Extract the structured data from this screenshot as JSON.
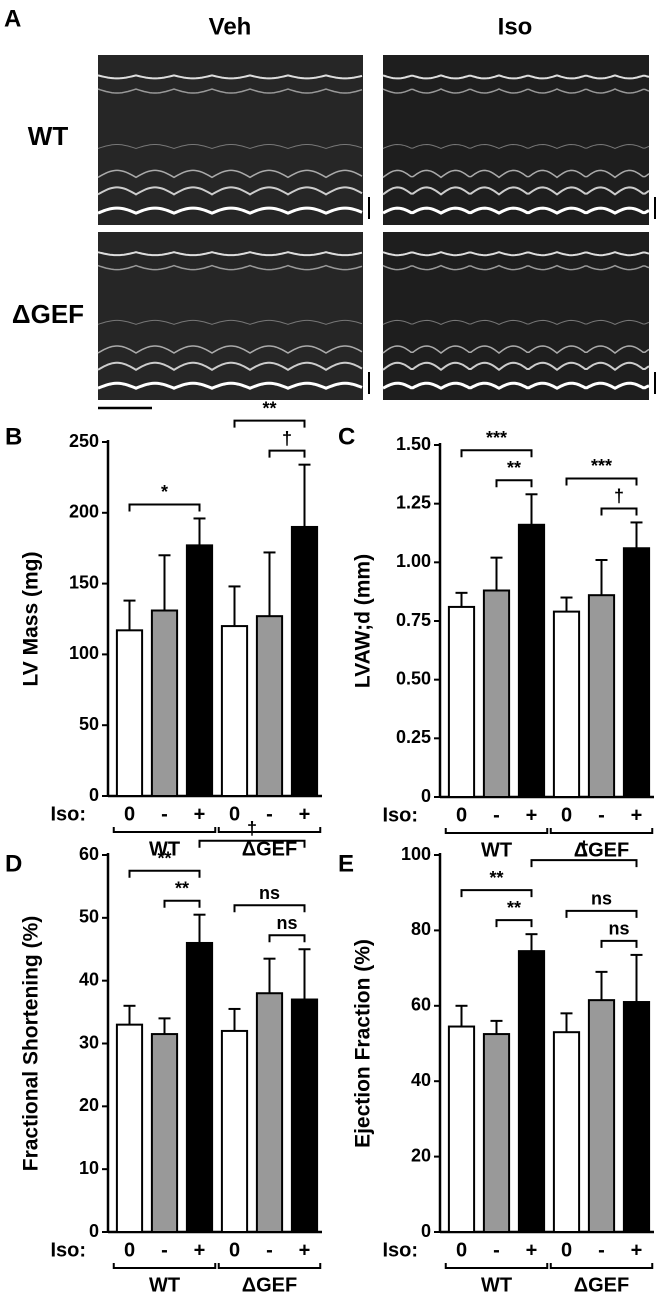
{
  "panel_a": {
    "label": "A",
    "columns": [
      "Veh",
      "Iso"
    ],
    "rows": [
      "WT",
      "ΔGEF"
    ]
  },
  "chart_data": [
    {
      "type": "bar",
      "panel": "B",
      "ylabel": "LV Mass (mg)",
      "categories": [
        "0",
        "-",
        "+",
        "0",
        "-",
        "+"
      ],
      "values": [
        117,
        131,
        177,
        120,
        127,
        190
      ],
      "errors": [
        21,
        39,
        19,
        28,
        45,
        44
      ],
      "colors": [
        "#ffffff",
        "#999999",
        "#000000",
        "#ffffff",
        "#999999",
        "#000000"
      ],
      "x_row_label": "Iso:",
      "groups": [
        "WT",
        "ΔGEF"
      ],
      "ylim": [
        0,
        250
      ],
      "yticks": [
        0,
        50,
        100,
        150,
        200,
        250
      ],
      "annotations": [
        {
          "text": "*",
          "between": [
            0,
            2
          ]
        },
        {
          "text": "†",
          "between": [
            4,
            5
          ]
        },
        {
          "text": "**",
          "between": [
            3,
            5
          ]
        }
      ]
    },
    {
      "type": "bar",
      "panel": "C",
      "ylabel": "LVAW;d (mm)",
      "categories": [
        "0",
        "-",
        "+",
        "0",
        "-",
        "+"
      ],
      "values": [
        0.81,
        0.88,
        1.16,
        0.79,
        0.86,
        1.06
      ],
      "errors": [
        0.06,
        0.14,
        0.13,
        0.06,
        0.15,
        0.11
      ],
      "colors": [
        "#ffffff",
        "#999999",
        "#000000",
        "#ffffff",
        "#999999",
        "#000000"
      ],
      "x_row_label": "Iso:",
      "groups": [
        "WT",
        "ΔGEF"
      ],
      "ylim": [
        0,
        1.5
      ],
      "yticks": [
        0,
        0.25,
        {
          "value": 0.5,
          "label": "0.50"
        },
        0.75,
        {
          "value": 1,
          "label": "1.00"
        },
        1.25,
        {
          "value": 1.5,
          "label": "1.50"
        }
      ],
      "annotations": [
        {
          "text": "**",
          "between": [
            1,
            2
          ]
        },
        {
          "text": "***",
          "between": [
            0,
            2
          ]
        },
        {
          "text": "†",
          "between": [
            4,
            5
          ]
        },
        {
          "text": "***",
          "between": [
            3,
            5
          ]
        }
      ]
    },
    {
      "type": "bar",
      "panel": "D",
      "ylabel": "Fractional Shortening (%)",
      "categories": [
        "0",
        "-",
        "+",
        "0",
        "-",
        "+"
      ],
      "values": [
        33,
        31.5,
        46,
        32,
        38,
        37
      ],
      "errors": [
        3,
        2.5,
        4.5,
        3.5,
        5.5,
        8
      ],
      "colors": [
        "#ffffff",
        "#999999",
        "#000000",
        "#ffffff",
        "#999999",
        "#000000"
      ],
      "x_row_label": "Iso:",
      "groups": [
        "WT",
        "ΔGEF"
      ],
      "ylim": [
        0,
        60
      ],
      "yticks": [
        0,
        10,
        20,
        30,
        40,
        50,
        60
      ],
      "annotations": [
        {
          "text": "**",
          "between": [
            1,
            2
          ]
        },
        {
          "text": "**",
          "between": [
            0,
            2
          ]
        },
        {
          "text": "ns",
          "between": [
            4,
            5
          ]
        },
        {
          "text": "ns",
          "between": [
            3,
            5
          ]
        },
        {
          "text": "†",
          "between": [
            2,
            5
          ]
        }
      ]
    },
    {
      "type": "bar",
      "panel": "E",
      "ylabel": "Ejection Fraction (%)",
      "categories": [
        "0",
        "-",
        "+",
        "0",
        "-",
        "+"
      ],
      "values": [
        54.5,
        52.5,
        74.5,
        53,
        61.5,
        61
      ],
      "errors": [
        5.5,
        3.5,
        4.5,
        5,
        7.5,
        12.5
      ],
      "colors": [
        "#ffffff",
        "#999999",
        "#000000",
        "#ffffff",
        "#999999",
        "#000000"
      ],
      "x_row_label": "Iso:",
      "groups": [
        "WT",
        "ΔGEF"
      ],
      "ylim": [
        0,
        100
      ],
      "yticks": [
        0,
        20,
        40,
        60,
        80,
        100
      ],
      "annotations": [
        {
          "text": "**",
          "between": [
            1,
            2
          ]
        },
        {
          "text": "**",
          "between": [
            0,
            2
          ]
        },
        {
          "text": "ns",
          "between": [
            4,
            5
          ]
        },
        {
          "text": "ns",
          "between": [
            3,
            5
          ]
        },
        {
          "text": "†",
          "between": [
            2,
            5
          ]
        }
      ]
    }
  ]
}
